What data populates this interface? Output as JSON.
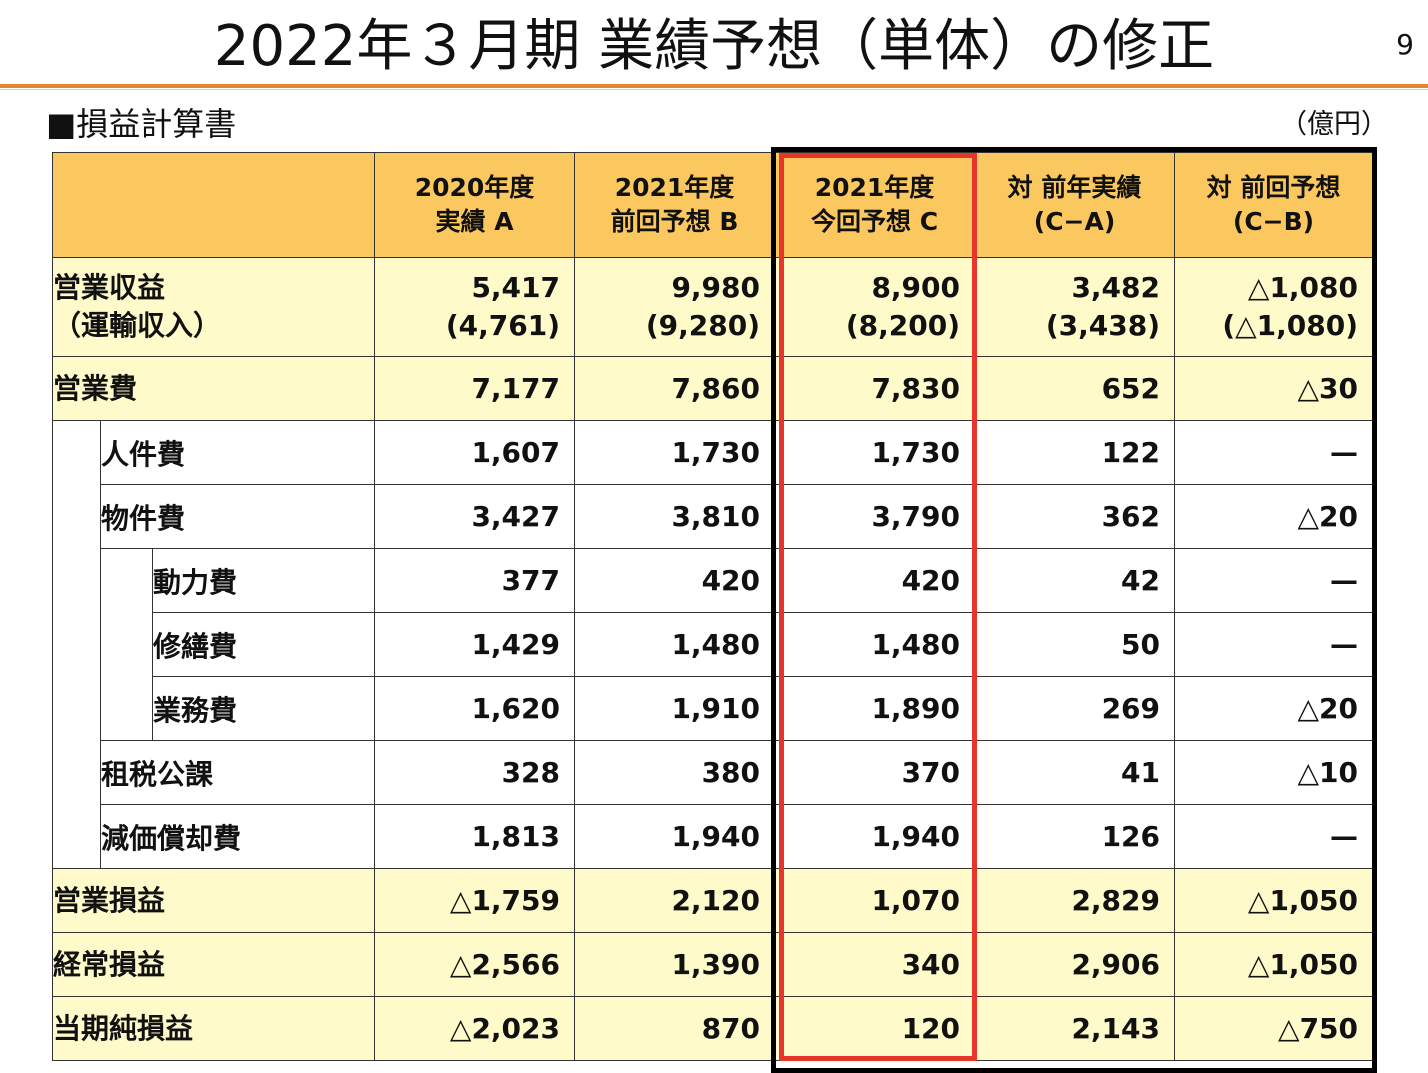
{
  "title": "2022年３月期 業績予想（単体）の修正",
  "page_number": "9",
  "section": "■損益計算書",
  "unit": "（億円）",
  "colors": {
    "header_bg": "#fbc75f",
    "row_bg": "#fefac9",
    "accent_rule": "#e8862c",
    "highlight_red": "#e8352b"
  },
  "headers": [
    {
      "line1": "2020年度",
      "line2": "実績 A"
    },
    {
      "line1": "2021年度",
      "line2": "前回予想 B"
    },
    {
      "line1": "2021年度",
      "line2": "今回予想 C"
    },
    {
      "line1": "対 前年実績",
      "line2": "(C−A)"
    },
    {
      "line1": "対 前回予想",
      "line2": "(C−B)"
    }
  ],
  "rows": [
    {
      "label": "営業収益",
      "label2": "（運輸収入）",
      "values": [
        "5,417",
        "9,980",
        "8,900",
        "3,482",
        "△1,080"
      ],
      "values2": [
        "(4,761)",
        "(9,280)",
        "(8,200)",
        "(3,438)",
        "(△1,080)"
      ]
    },
    {
      "label": "営業費",
      "values": [
        "7,177",
        "7,860",
        "7,830",
        "652",
        "△30"
      ]
    },
    {
      "label": "人件費",
      "values": [
        "1,607",
        "1,730",
        "1,730",
        "122",
        "—"
      ]
    },
    {
      "label": "物件費",
      "values": [
        "3,427",
        "3,810",
        "3,790",
        "362",
        "△20"
      ]
    },
    {
      "label": "動力費",
      "values": [
        "377",
        "420",
        "420",
        "42",
        "—"
      ]
    },
    {
      "label": "修繕費",
      "values": [
        "1,429",
        "1,480",
        "1,480",
        "50",
        "—"
      ]
    },
    {
      "label": "業務費",
      "values": [
        "1,620",
        "1,910",
        "1,890",
        "269",
        "△20"
      ]
    },
    {
      "label": "租税公課",
      "values": [
        "328",
        "380",
        "370",
        "41",
        "△10"
      ]
    },
    {
      "label": "減価償却費",
      "values": [
        "1,813",
        "1,940",
        "1,940",
        "126",
        "—"
      ]
    },
    {
      "label": "営業損益",
      "values": [
        "△1,759",
        "2,120",
        "1,070",
        "2,829",
        "△1,050"
      ]
    },
    {
      "label": "経常損益",
      "values": [
        "△2,566",
        "1,390",
        "340",
        "2,906",
        "△1,050"
      ]
    },
    {
      "label": "当期純損益",
      "values": [
        "△2,023",
        "870",
        "120",
        "2,143",
        "△750"
      ]
    }
  ]
}
